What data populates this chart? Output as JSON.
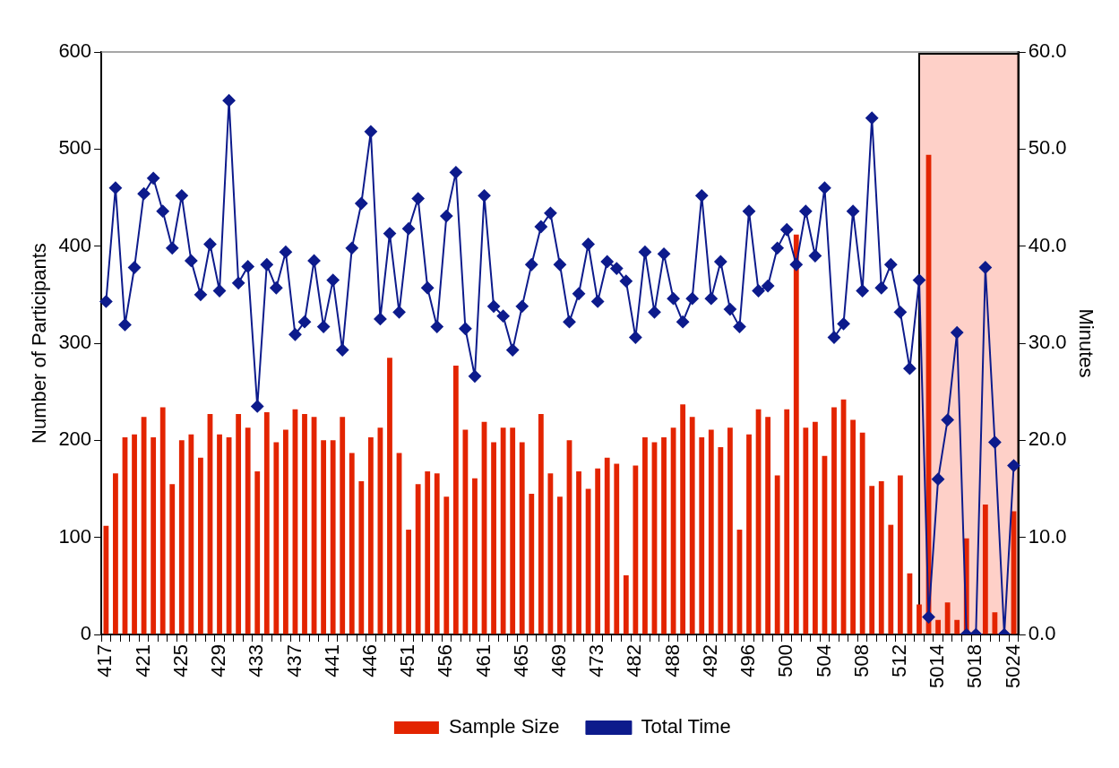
{
  "chart_data": {
    "type": "bar",
    "ylabel": "Number of Participants",
    "y2label": "Minutes",
    "categories": [
      "417",
      null,
      null,
      null,
      "421",
      null,
      null,
      null,
      "425",
      null,
      null,
      null,
      "429",
      null,
      null,
      null,
      "433",
      null,
      null,
      null,
      "437",
      null,
      null,
      null,
      "441",
      null,
      null,
      null,
      "446",
      null,
      null,
      null,
      "451",
      null,
      null,
      null,
      "456",
      null,
      null,
      null,
      "461",
      null,
      null,
      null,
      "465",
      null,
      null,
      null,
      "469",
      null,
      null,
      null,
      "473",
      null,
      null,
      null,
      "482",
      null,
      null,
      null,
      "488",
      null,
      null,
      null,
      "492",
      null,
      null,
      null,
      "496",
      null,
      null,
      null,
      "500",
      null,
      null,
      null,
      "504",
      null,
      null,
      null,
      "508",
      null,
      null,
      null,
      "512",
      null,
      null,
      null,
      "5014",
      null,
      null,
      null,
      "5018",
      null,
      null,
      null,
      "5024"
    ],
    "series": [
      {
        "name": "Sample Size",
        "color": "#e32400",
        "values": [
          112,
          166,
          203,
          206,
          224,
          203,
          234,
          155,
          200,
          206,
          182,
          227,
          206,
          203,
          227,
          213,
          168,
          229,
          198,
          211,
          232,
          227,
          224,
          200,
          200,
          224,
          187,
          158,
          203,
          213,
          285,
          187,
          108,
          155,
          168,
          166,
          142,
          277,
          211,
          161,
          219,
          198,
          213,
          213,
          198,
          145,
          227,
          166,
          142,
          200,
          168,
          150,
          171,
          182,
          176,
          61,
          174,
          203,
          198,
          203,
          213,
          237,
          224,
          203,
          211,
          193,
          213,
          108,
          206,
          232,
          224,
          164,
          232,
          412,
          213,
          219,
          184,
          234,
          242,
          221,
          208,
          153,
          158,
          113,
          164,
          63,
          31,
          494,
          15,
          33,
          15,
          99,
          null,
          134,
          23,
          null,
          127
        ]
      },
      {
        "name": "Total Time",
        "type": "line",
        "axis": "y2",
        "color": "#0d1b8c",
        "marker": "diamond",
        "values": [
          34.3,
          46.0,
          31.9,
          37.8,
          45.4,
          47.0,
          43.6,
          39.8,
          45.2,
          38.5,
          35.0,
          40.2,
          35.4,
          55.0,
          36.2,
          37.9,
          23.5,
          38.1,
          35.7,
          39.4,
          30.9,
          32.2,
          38.5,
          31.7,
          36.5,
          29.3,
          39.8,
          44.4,
          51.8,
          32.5,
          41.3,
          33.2,
          41.8,
          44.9,
          35.7,
          31.7,
          43.1,
          47.6,
          31.5,
          26.6,
          45.2,
          33.8,
          32.8,
          29.3,
          33.8,
          38.1,
          42.0,
          43.4,
          38.1,
          32.2,
          35.1,
          40.2,
          34.3,
          38.4,
          37.7,
          36.4,
          30.6,
          39.4,
          33.2,
          39.2,
          34.6,
          32.2,
          34.6,
          45.2,
          34.6,
          38.4,
          33.5,
          31.7,
          43.6,
          35.4,
          35.9,
          39.8,
          41.7,
          38.1,
          43.6,
          39.0,
          46.0,
          30.6,
          32.0,
          43.6,
          35.4,
          53.2,
          35.7,
          38.1,
          33.2,
          27.4,
          36.5,
          1.8,
          16.0,
          22.1,
          31.1,
          0,
          0,
          37.8,
          19.8,
          0,
          17.4
        ]
      }
    ],
    "ylim": [
      0,
      600
    ],
    "yticks": [
      0,
      100,
      200,
      300,
      400,
      500,
      600
    ],
    "y2lim": [
      0,
      60
    ],
    "y2ticks": [
      {
        "value": 0,
        "label": "0.0"
      },
      {
        "value": 10,
        "label": "10.0"
      },
      {
        "value": 20,
        "label": "20.0"
      },
      {
        "value": 30,
        "label": "30.0"
      },
      {
        "value": 40,
        "label": "40.0"
      },
      {
        "value": 50,
        "label": "50.0"
      },
      {
        "value": 60,
        "label": "60.0"
      }
    ],
    "grid": false,
    "legend": "bottom"
  }
}
